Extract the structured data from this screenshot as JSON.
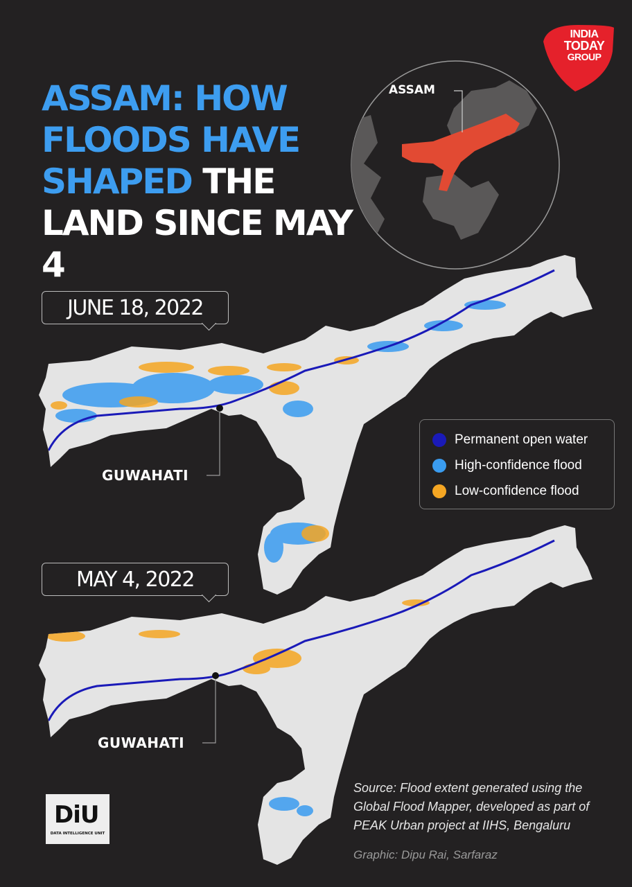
{
  "title": {
    "part1": "ASSAM: HOW",
    "part2": "FLOODS HAVE",
    "part3a": "SHAPED",
    "part3b": " THE",
    "part4": "LAND SINCE MAY 4"
  },
  "brand": {
    "line1": "INDIA",
    "line2": "TODAY",
    "line3": "GROUP",
    "color": "#e5212b"
  },
  "inset_map": {
    "label": "ASSAM",
    "highlight_color": "#e24a33",
    "base_color": "#5a5858"
  },
  "maps": [
    {
      "date": "JUNE 18, 2022",
      "city": "GUWAHATI"
    },
    {
      "date": "MAY 4, 2022",
      "city": "GUWAHATI"
    }
  ],
  "legend": {
    "items": [
      {
        "label": "Permanent open water",
        "color": "#1a1ab8"
      },
      {
        "label": "High-confidence flood",
        "color": "#3a9cf0"
      },
      {
        "label": "Low-confidence flood",
        "color": "#f5a623"
      }
    ]
  },
  "diu": {
    "main": "DiU",
    "sub": "DATA INTELLIGENCE UNIT"
  },
  "source": "Source: Flood extent generated using the Global Flood Mapper, developed as part of PEAK Urban project at IIHS, Bengaluru",
  "credit": "Graphic: Dipu Rai, Sarfaraz"
}
